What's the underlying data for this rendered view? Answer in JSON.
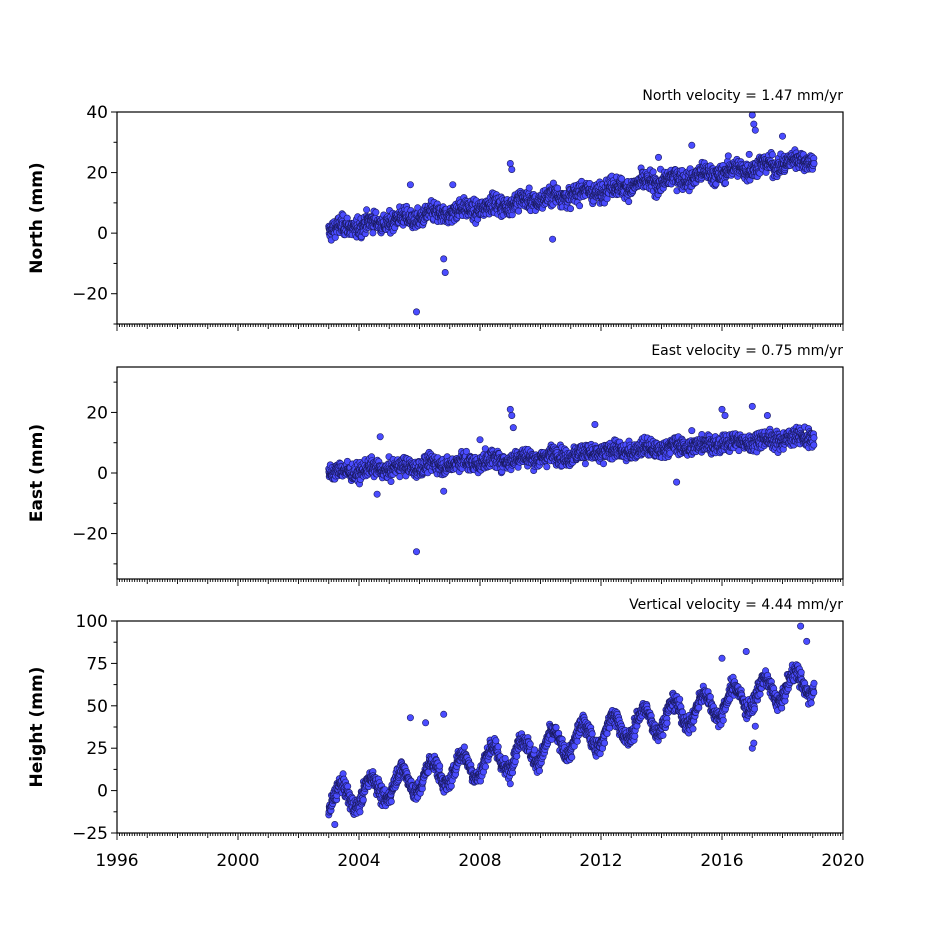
{
  "chart_data": [
    {
      "type": "scatter",
      "title": "North velocity = 1.47 mm/yr",
      "ylabel": "North (mm)",
      "xlabel": "",
      "xlim": [
        1996,
        2020
      ],
      "ylim": [
        -30,
        40
      ],
      "yticks": [
        -20,
        0,
        20,
        40
      ],
      "velocity": 1.47,
      "start": 2003.0,
      "end": 2019.05,
      "offset": 1.0,
      "noise": 2.2,
      "seasonal": 1.0,
      "color": "#4a4cff",
      "outliers": [
        [
          2005.7,
          16
        ],
        [
          2005.9,
          -26
        ],
        [
          2006.8,
          -8.5
        ],
        [
          2006.85,
          -13
        ],
        [
          2007.1,
          16
        ],
        [
          2009.0,
          23
        ],
        [
          2009.05,
          21
        ],
        [
          2010.4,
          -2
        ],
        [
          2013.9,
          25
        ],
        [
          2015.0,
          29
        ],
        [
          2017.0,
          39
        ],
        [
          2017.05,
          36
        ],
        [
          2017.1,
          34
        ],
        [
          2018.0,
          32
        ],
        [
          2016.9,
          26
        ]
      ]
    },
    {
      "type": "scatter",
      "title": "East velocity = 0.75 mm/yr",
      "ylabel": "East (mm)",
      "xlabel": "",
      "xlim": [
        1996,
        2020
      ],
      "ylim": [
        -35,
        35
      ],
      "yticks": [
        -20,
        0,
        20
      ],
      "velocity": 0.75,
      "start": 2003.0,
      "end": 2019.05,
      "offset": 0.0,
      "noise": 2.0,
      "seasonal": 0.8,
      "color": "#4a4cff",
      "outliers": [
        [
          2004.7,
          12
        ],
        [
          2004.6,
          -7
        ],
        [
          2005.9,
          -26
        ],
        [
          2006.8,
          -6
        ],
        [
          2008.0,
          11
        ],
        [
          2009.0,
          21
        ],
        [
          2009.05,
          19
        ],
        [
          2009.1,
          15
        ],
        [
          2011.8,
          16
        ],
        [
          2014.5,
          -3
        ],
        [
          2015.0,
          14
        ],
        [
          2016.0,
          21
        ],
        [
          2016.1,
          19
        ],
        [
          2017.0,
          22
        ],
        [
          2017.5,
          19
        ]
      ]
    },
    {
      "type": "scatter",
      "title": "Vertical velocity = 4.44 mm/yr",
      "ylabel": "Height (mm)",
      "xlabel": "",
      "xlim": [
        1996,
        2020
      ],
      "ylim": [
        -25,
        100
      ],
      "yticks": [
        -25,
        0,
        25,
        50,
        75,
        100
      ],
      "xticks": [
        1996,
        2000,
        2004,
        2008,
        2012,
        2016,
        2020
      ],
      "velocity": 4.44,
      "start": 2003.0,
      "end": 2019.05,
      "offset": -6.0,
      "noise": 3.5,
      "seasonal": 8.0,
      "color": "#4a4cff",
      "outliers": [
        [
          2003.2,
          -20
        ],
        [
          2005.7,
          43
        ],
        [
          2006.2,
          40
        ],
        [
          2006.8,
          45
        ],
        [
          2009.0,
          4
        ],
        [
          2016.0,
          78
        ],
        [
          2016.8,
          82
        ],
        [
          2017.0,
          25
        ],
        [
          2017.05,
          28
        ],
        [
          2017.1,
          38
        ],
        [
          2018.6,
          97
        ],
        [
          2018.8,
          88
        ]
      ]
    }
  ]
}
